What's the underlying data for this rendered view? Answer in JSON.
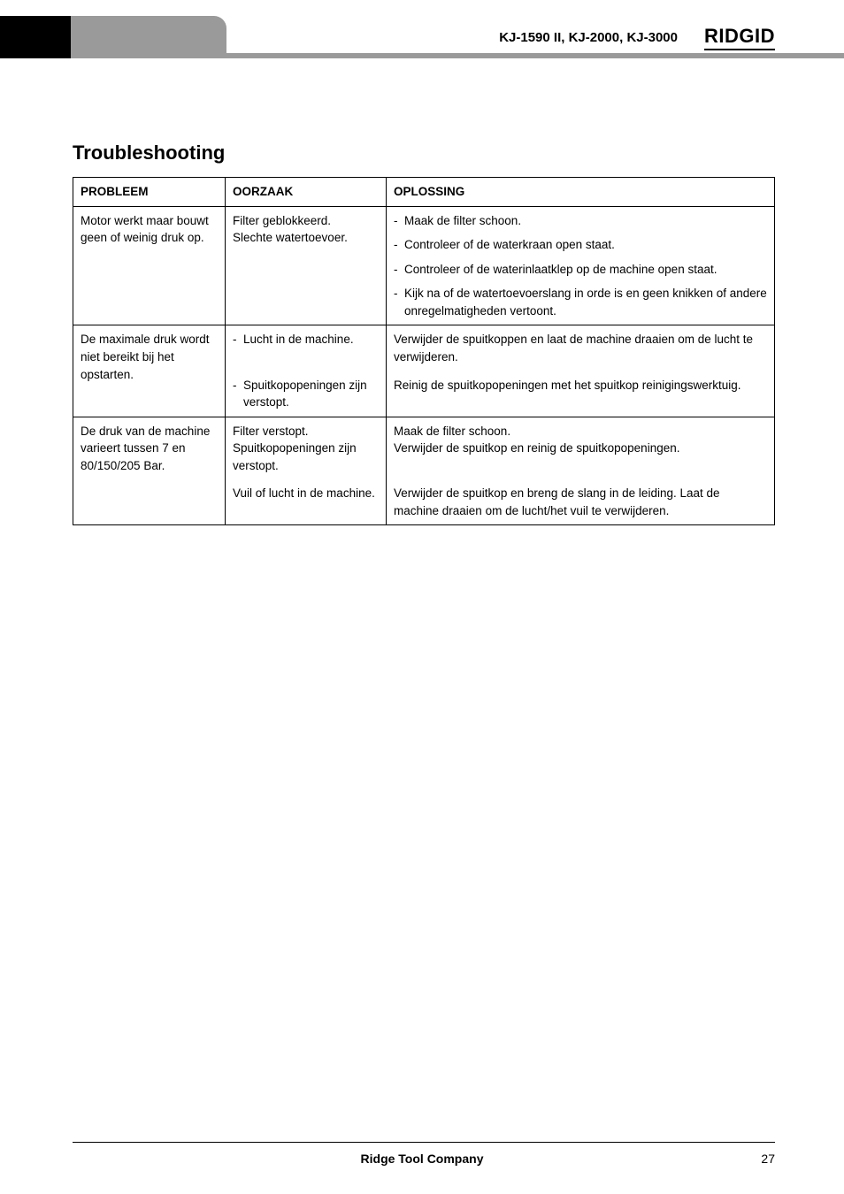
{
  "header": {
    "models": "KJ-1590 II, KJ-2000, KJ-3000",
    "brand": "RIDGID"
  },
  "section_title": "Troubleshooting",
  "table": {
    "headers": {
      "c0": "PROBLEEM",
      "c1": "OORZAAK",
      "c2": "OPLOSSING"
    },
    "rows": [
      {
        "problem": "Motor werkt maar bouwt geen of weinig druk op.",
        "cause_text": "Filter geblokkeerd.\nSlechte watertoevoer.",
        "solutions": [
          "Maak de filter schoon.",
          "Controleer of de waterkraan open staat.",
          "Controleer of de waterinlaatklep op de machine open staat.",
          "Kijk na of de watertoevoerslang in orde is en geen knikken of andere onregelmatigheden vertoont."
        ]
      },
      {
        "problem": "De maximale druk wordt niet bereikt bij het opstarten.",
        "sub": [
          {
            "cause": "Lucht in de machine.",
            "solution": "Verwijder de spuitkoppen en laat de machine draaien om de lucht te verwijderen."
          },
          {
            "cause": "Spuitkopopeningen zijn verstopt.",
            "solution": "Reinig de spuitkopopeningen met het spuitkop reinigingswerktuig."
          }
        ]
      },
      {
        "problem": "De druk van de machine varieert tussen 7 en 80/150/205 Bar.",
        "sub": [
          {
            "cause": "Filter verstopt.\nSpuitkopopeningen zijn verstopt.",
            "solution": "Maak de filter schoon.\nVerwijder de spuitkop en reinig de spuitkopopeningen."
          },
          {
            "cause": "Vuil of lucht in de machine.",
            "solution": "Verwijder de spuitkop en breng de slang in de leiding. Laat de machine draaien om de lucht/het vuil te verwijderen."
          }
        ]
      }
    ]
  },
  "footer": {
    "company": "Ridge Tool Company",
    "page": "27"
  }
}
